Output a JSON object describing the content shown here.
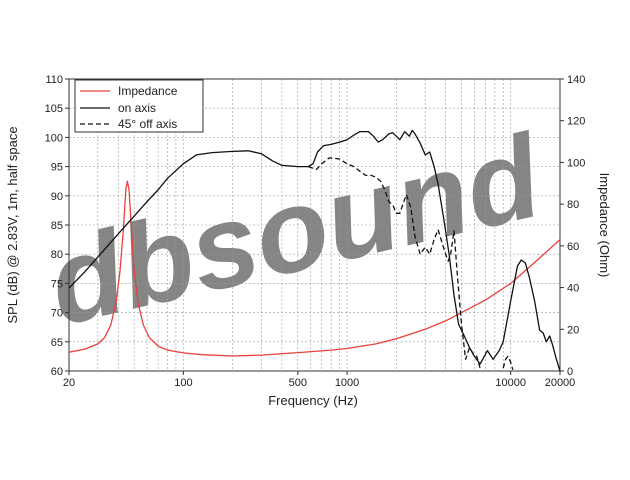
{
  "colors": {
    "impedance": "#e8403a",
    "on_axis": "#111111",
    "off_axis": "#111111",
    "grid": "#9a9a9a",
    "background": "#ffffff"
  },
  "watermark": "dbsound",
  "chart_data": {
    "type": "line",
    "title": "",
    "xlabel": "Frequency (Hz)",
    "ylabel": "SPL (dB) @ 2.83V, 1m, half space",
    "y2label": "Impedance (Ohm)",
    "xscale": "log",
    "xlim": [
      20,
      20000
    ],
    "ylim": [
      60,
      110
    ],
    "y2lim": [
      0,
      140
    ],
    "grid": true,
    "legend_position": "top-left",
    "x_ticks": [
      "20",
      "100",
      "500",
      "1000",
      "10000",
      "20000"
    ],
    "y_ticks": [
      "60",
      "65",
      "70",
      "75",
      "80",
      "85",
      "90",
      "95",
      "100",
      "105",
      "110"
    ],
    "y2_ticks": [
      "0",
      "20",
      "40",
      "60",
      "80",
      "100",
      "120",
      "140"
    ],
    "series": [
      {
        "name": "Impedance",
        "axis": "right",
        "style": "solid",
        "points": [
          [
            20,
            9.0
          ],
          [
            25,
            10.5
          ],
          [
            30,
            13
          ],
          [
            33,
            16
          ],
          [
            36,
            22
          ],
          [
            39,
            34
          ],
          [
            41,
            48
          ],
          [
            43,
            68
          ],
          [
            44.5,
            87
          ],
          [
            45.5,
            91
          ],
          [
            46.5,
            87
          ],
          [
            48,
            70
          ],
          [
            50,
            48
          ],
          [
            53,
            32
          ],
          [
            57,
            22
          ],
          [
            62,
            16
          ],
          [
            70,
            12
          ],
          [
            80,
            10
          ],
          [
            100,
            8.7
          ],
          [
            130,
            7.8
          ],
          [
            200,
            7.2
          ],
          [
            300,
            7.6
          ],
          [
            500,
            8.8
          ],
          [
            800,
            10.0
          ],
          [
            1000,
            10.8
          ],
          [
            1500,
            13
          ],
          [
            2000,
            15.5
          ],
          [
            3000,
            20
          ],
          [
            4000,
            24
          ],
          [
            5000,
            28
          ],
          [
            7000,
            34
          ],
          [
            10000,
            42
          ],
          [
            14000,
            52
          ],
          [
            20000,
            63
          ]
        ]
      },
      {
        "name": "on axis",
        "axis": "left",
        "style": "solid",
        "points": [
          [
            20,
            74.2
          ],
          [
            25,
            77
          ],
          [
            30,
            79.5
          ],
          [
            40,
            83.5
          ],
          [
            50,
            86.5
          ],
          [
            60,
            89
          ],
          [
            70,
            91
          ],
          [
            80,
            93
          ],
          [
            100,
            95.5
          ],
          [
            120,
            97
          ],
          [
            150,
            97.4
          ],
          [
            200,
            97.6
          ],
          [
            250,
            97.7
          ],
          [
            300,
            97.2
          ],
          [
            350,
            96
          ],
          [
            400,
            95.2
          ],
          [
            500,
            95
          ],
          [
            580,
            95
          ],
          [
            620,
            95.5
          ],
          [
            660,
            97.5
          ],
          [
            720,
            98.6
          ],
          [
            800,
            98.8
          ],
          [
            900,
            99.2
          ],
          [
            1000,
            99.6
          ],
          [
            1100,
            100.4
          ],
          [
            1200,
            101
          ],
          [
            1350,
            101
          ],
          [
            1450,
            100.2
          ],
          [
            1550,
            99.2
          ],
          [
            1650,
            99.6
          ],
          [
            1800,
            100.6
          ],
          [
            1900,
            100.8
          ],
          [
            2000,
            100.2
          ],
          [
            2100,
            99.6
          ],
          [
            2250,
            101
          ],
          [
            2400,
            100.2
          ],
          [
            2500,
            101.2
          ],
          [
            2600,
            100.6
          ],
          [
            2800,
            99
          ],
          [
            3000,
            97
          ],
          [
            3200,
            97.5
          ],
          [
            3400,
            95
          ],
          [
            3600,
            92
          ],
          [
            3900,
            86
          ],
          [
            4200,
            80
          ],
          [
            4500,
            73
          ],
          [
            4800,
            68
          ],
          [
            5200,
            66
          ],
          [
            5600,
            64
          ],
          [
            6000,
            62.5
          ],
          [
            6500,
            61.2
          ],
          [
            6800,
            62.2
          ],
          [
            7200,
            63.5
          ],
          [
            7800,
            62
          ],
          [
            8500,
            63.5
          ],
          [
            9000,
            65
          ],
          [
            10000,
            72
          ],
          [
            11000,
            78
          ],
          [
            11600,
            79
          ],
          [
            12300,
            78.5
          ],
          [
            13000,
            76
          ],
          [
            14000,
            72
          ],
          [
            15000,
            67
          ],
          [
            15800,
            66.5
          ],
          [
            16500,
            65
          ],
          [
            17300,
            66
          ],
          [
            18000,
            64.5
          ],
          [
            19000,
            62
          ],
          [
            20000,
            60
          ]
        ]
      },
      {
        "name": "45° off axis",
        "axis": "left",
        "style": "dashed",
        "points": [
          [
            580,
            95
          ],
          [
            650,
            94.5
          ],
          [
            700,
            95.5
          ],
          [
            780,
            96.5
          ],
          [
            900,
            96.3
          ],
          [
            1000,
            95.5
          ],
          [
            1100,
            95
          ],
          [
            1200,
            94.2
          ],
          [
            1300,
            93.5
          ],
          [
            1400,
            93.5
          ],
          [
            1500,
            93.2
          ],
          [
            1600,
            92.5
          ],
          [
            1700,
            91
          ],
          [
            1800,
            89
          ],
          [
            1900,
            88.5
          ],
          [
            2000,
            87
          ],
          [
            2100,
            87
          ],
          [
            2300,
            90.2
          ],
          [
            2450,
            88
          ],
          [
            2600,
            83
          ],
          [
            2800,
            80
          ],
          [
            3000,
            81.2
          ],
          [
            3200,
            80
          ],
          [
            3400,
            82.5
          ],
          [
            3600,
            84.2
          ],
          [
            3800,
            82
          ],
          [
            4000,
            80
          ],
          [
            4150,
            78.8
          ],
          [
            4300,
            80
          ],
          [
            4500,
            84
          ],
          [
            4700,
            77
          ],
          [
            5000,
            68
          ],
          [
            5300,
            62
          ],
          [
            5600,
            64
          ],
          [
            5900,
            63
          ],
          [
            6200,
            62.5
          ],
          [
            6500,
            60.5
          ]
        ]
      },
      {
        "name": "",
        "axis": "left",
        "style": "dashed",
        "points": [
          [
            9000,
            60.5
          ],
          [
            9300,
            62
          ],
          [
            9600,
            62.5
          ],
          [
            10000,
            61.5
          ],
          [
            10300,
            60.2
          ]
        ]
      }
    ]
  }
}
